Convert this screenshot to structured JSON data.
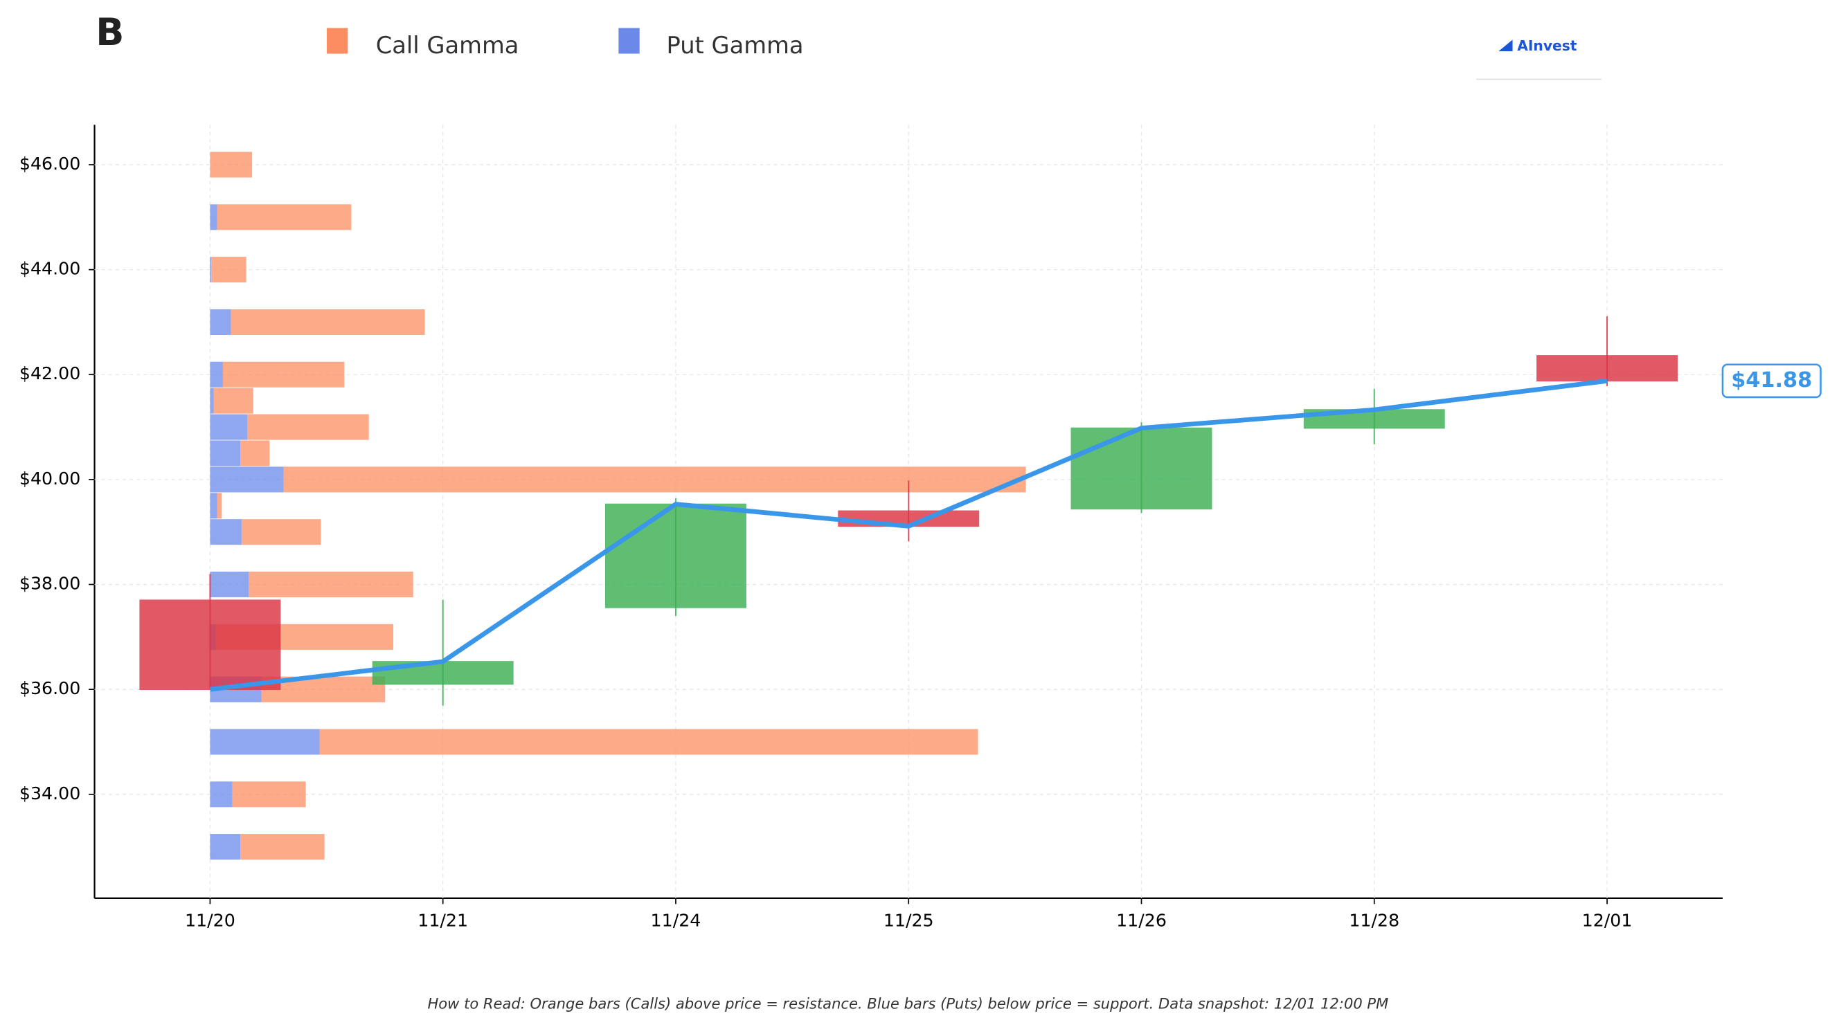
{
  "chart_data": {
    "type": "candlestick",
    "title": "B",
    "logo": "AInvest",
    "note": "How to Read: Orange bars (Calls) above price = resistance. Blue bars (Puts) below price = support. Data snapshot: 12/01 12:00 PM",
    "categories": [
      "11/20",
      "11/21",
      "11/24",
      "11/25",
      "11/26",
      "11/28",
      "12/01"
    ],
    "open": [
      37.7,
      36.1,
      37.56,
      39.4,
      39.44,
      40.98,
      42.36
    ],
    "high": [
      38.2,
      37.71,
      39.64,
      39.98,
      41.09,
      41.73,
      43.11
    ],
    "low": [
      36.0,
      35.69,
      37.4,
      38.82,
      39.36,
      40.67,
      41.78
    ],
    "close": [
      36.0,
      36.53,
      39.53,
      39.11,
      40.98,
      41.33,
      41.88
    ],
    "up_color": "#3cb054",
    "down_color": "#dc3545",
    "price": {
      "color": "#3a96e8",
      "values": [
        36.0,
        36.53,
        39.53,
        39.11,
        40.98,
        41.33,
        41.88
      ],
      "value_labels": [
        null,
        null,
        null,
        null,
        null,
        null,
        "$41.88"
      ]
    },
    "gamma": {
      "strikes": [
        46,
        45,
        44,
        43,
        42,
        41.5,
        41,
        40.5,
        40,
        39.5,
        39,
        38,
        37,
        36,
        35,
        34,
        33
      ],
      "series": [
        {
          "name": "Call Gamma",
          "color": "#fc8d62",
          "values": [
            36,
            115,
            30,
            166,
            104,
            34,
            104,
            25,
            636,
            4,
            68,
            141,
            152,
            106,
            564,
            63,
            72
          ]
        },
        {
          "name": "Put Gamma",
          "color": "#6a89e8",
          "values": [
            0,
            6,
            1,
            18,
            11,
            3,
            32,
            26,
            63,
            6,
            27,
            33,
            5,
            44,
            94,
            19,
            26
          ]
        }
      ]
    },
    "ylim": [
      32.02,
      46.76
    ],
    "yticks": [
      {
        "value": 34,
        "label": "$34.00"
      },
      {
        "value": 36,
        "label": "$36.00"
      },
      {
        "value": 38,
        "label": "$38.00"
      },
      {
        "value": 40,
        "label": "$40.00"
      },
      {
        "value": 42,
        "label": "$42.00"
      },
      {
        "value": 44,
        "label": "$44.00"
      },
      {
        "value": 46,
        "label": "$46.00"
      }
    ],
    "grid": true
  }
}
